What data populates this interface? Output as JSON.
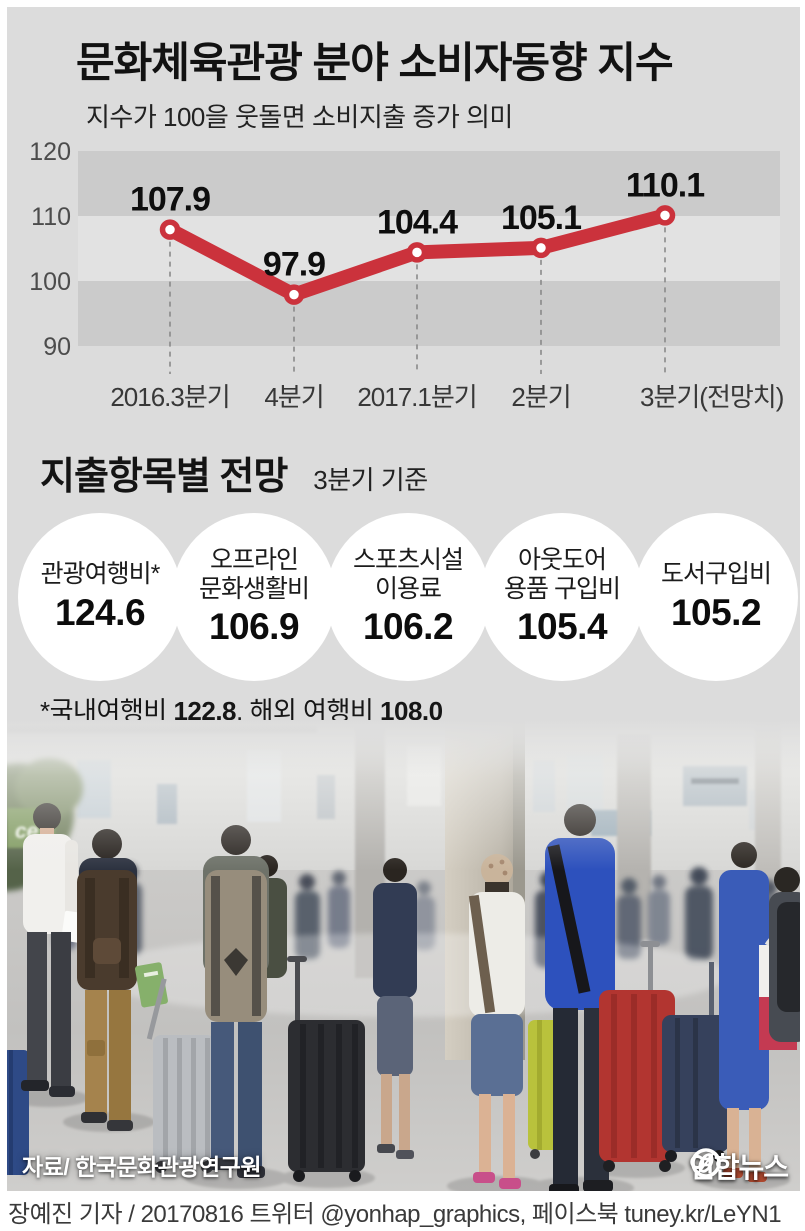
{
  "page": {
    "bg": "#ffffff",
    "panel_bg": "#dcdcdc",
    "accent_red": "#cb323c",
    "band_dark": "#cbcbcb",
    "band_light": "#e2e2e2"
  },
  "header": {
    "title": "문화체육관광 분야 소비자동향 지수",
    "subtitle": "지수가 100을 웃돌면 소비지출 증가 의미"
  },
  "chart_data": {
    "type": "line",
    "title": "문화체육관광 분야 소비자동향 지수",
    "subtitle": "지수가 100을 웃돌면 소비지출 증가 의미",
    "categories": [
      "2016.3분기",
      "4분기",
      "2017.1분기",
      "2분기",
      "3분기(전망치)"
    ],
    "values": [
      107.9,
      97.9,
      104.4,
      105.1,
      110.1
    ],
    "yticks": [
      120,
      110,
      100,
      90
    ],
    "ylim": [
      90,
      120
    ],
    "grid": "alternating-bands",
    "legend": "none",
    "line_color": "#cb323c",
    "marker": "white-circle-red-ring"
  },
  "spending": {
    "heading": "지출항목별 전망",
    "subheading": "3분기 기준",
    "items": [
      {
        "lines": [
          "관광여행비*"
        ],
        "value": "124.6"
      },
      {
        "lines": [
          "오프라인",
          "문화생활비"
        ],
        "value": "106.9"
      },
      {
        "lines": [
          "스포츠시설",
          "이용료"
        ],
        "value": "106.2"
      },
      {
        "lines": [
          "아웃도어",
          "용품 구입비"
        ],
        "value": "105.4"
      },
      {
        "lines": [
          "도서구입비"
        ],
        "value": "105.2"
      }
    ],
    "footnote": "*국내여행비 122.8, 해외 여행비 108.0"
  },
  "photo": {
    "sign_text": "ce",
    "credit": "자료/ 한국문화관광연구원",
    "logo_text": "연합뉴스"
  },
  "footer": {
    "byline": "장예진 기자 / 20170816 트위터 @yonhap_graphics, 페이스북 tuney.kr/LeYN1"
  }
}
